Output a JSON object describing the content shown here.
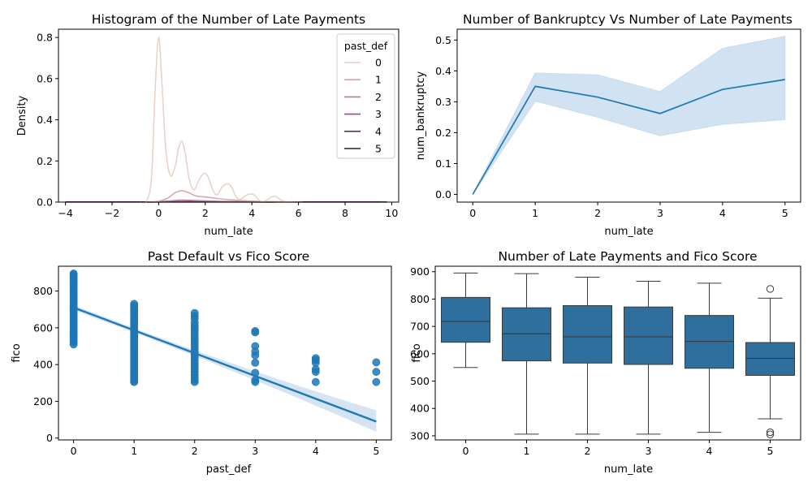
{
  "colors": {
    "line_blue": "#1f77b4",
    "band_blue": "#c6dbef",
    "box_fill": "#2f6f9e",
    "box_edge": "#3a3a3a",
    "axis": "#000000"
  },
  "chart_data": [
    {
      "type": "line",
      "subtype": "kde",
      "title": "Histogram of the Number of Late Payments",
      "xlabel": "num_late",
      "ylabel": "Density",
      "xlim": [
        -4.3,
        10.3
      ],
      "ylim": [
        0,
        0.84
      ],
      "xticks": [
        -4,
        -2,
        0,
        2,
        4,
        6,
        8,
        10
      ],
      "yticks": [
        0.0,
        0.2,
        0.4,
        0.6,
        0.8
      ],
      "xtick_labels": [
        "−4",
        "−2",
        "0",
        "2",
        "4",
        "6",
        "8",
        "10"
      ],
      "ytick_labels": [
        "0.0",
        "0.2",
        "0.4",
        "0.6",
        "0.8"
      ],
      "grid": false,
      "legend": {
        "title": "past_def",
        "placement": "top-right",
        "entries": [
          "0",
          "1",
          "2",
          "3",
          "4",
          "5"
        ]
      },
      "series": [
        {
          "name": "0",
          "color": "#ebcfc6",
          "x": [
            -0.8,
            -0.5,
            -0.3,
            -0.15,
            0,
            0.15,
            0.3,
            0.5,
            0.7,
            0.85,
            1,
            1.15,
            1.3,
            1.5,
            1.7,
            1.85,
            2,
            2.15,
            2.3,
            2.5,
            2.7,
            2.85,
            3,
            3.15,
            3.3,
            3.5,
            3.7,
            3.85,
            4,
            4.15,
            4.3,
            4.5,
            4.7,
            4.85,
            5,
            5.15,
            5.3,
            5.5,
            5.8,
            6.2
          ],
          "y": [
            0,
            0.01,
            0.13,
            0.55,
            0.8,
            0.56,
            0.26,
            0.13,
            0.17,
            0.26,
            0.295,
            0.23,
            0.12,
            0.06,
            0.1,
            0.13,
            0.14,
            0.115,
            0.065,
            0.035,
            0.07,
            0.085,
            0.088,
            0.07,
            0.03,
            0.013,
            0.03,
            0.038,
            0.04,
            0.03,
            0.01,
            0.003,
            0.015,
            0.025,
            0.028,
            0.018,
            0.006,
            0.002,
            0,
            0
          ]
        },
        {
          "name": "1",
          "color": "#d9a3ab",
          "x": [
            -0.5,
            0,
            0.4,
            0.7,
            1,
            1.3,
            1.6,
            2,
            2.5,
            3,
            3.5,
            4,
            4.5,
            5,
            6
          ],
          "y": [
            0,
            0.004,
            0.02,
            0.045,
            0.055,
            0.045,
            0.03,
            0.025,
            0.018,
            0.012,
            0.008,
            0.005,
            0.003,
            0.002,
            0
          ]
        },
        {
          "name": "2",
          "color": "#b97a91",
          "x": [
            -0.5,
            0,
            0.5,
            1,
            1.5,
            2,
            2.5,
            3,
            4,
            5
          ],
          "y": [
            0,
            0.002,
            0.006,
            0.01,
            0.008,
            0.006,
            0.004,
            0.003,
            0.001,
            0
          ]
        },
        {
          "name": "3",
          "color": "#8e4e86",
          "x": [
            -0.5,
            0,
            1,
            2,
            3,
            4,
            5
          ],
          "y": [
            0,
            0.001,
            0.003,
            0.003,
            0.002,
            0.001,
            0
          ]
        },
        {
          "name": "4",
          "color": "#5e2c63",
          "x": [
            -4,
            -2,
            0,
            2,
            4,
            6,
            8,
            9.5
          ],
          "y": [
            0.001,
            0.001,
            0.001,
            0.001,
            0.001,
            0.001,
            0.001,
            0.001
          ]
        },
        {
          "name": "5",
          "color": "#2b1a36",
          "x": [
            -4,
            -1,
            1,
            3,
            5,
            7,
            9.8
          ],
          "y": [
            0.0005,
            0.0005,
            0.0005,
            0.0005,
            0.0005,
            0.0005,
            0.0005
          ]
        }
      ]
    },
    {
      "type": "line",
      "title": "Number of Bankruptcy Vs Number of Late Payments",
      "xlabel": "num_late",
      "ylabel": "num_bankruptcy",
      "xlim": [
        -0.25,
        5.25
      ],
      "ylim": [
        -0.025,
        0.535
      ],
      "xticks": [
        0,
        1,
        2,
        3,
        4,
        5
      ],
      "yticks": [
        0.0,
        0.1,
        0.2,
        0.3,
        0.4,
        0.5
      ],
      "xtick_labels": [
        "0",
        "1",
        "2",
        "3",
        "4",
        "5"
      ],
      "ytick_labels": [
        "0.0",
        "0.1",
        "0.2",
        "0.3",
        "0.4",
        "0.5"
      ],
      "grid": false,
      "x": [
        0,
        1,
        2,
        3,
        4,
        5
      ],
      "y": [
        0.0,
        0.35,
        0.315,
        0.262,
        0.34,
        0.372
      ],
      "ci_upper": [
        0.0,
        0.393,
        0.387,
        0.333,
        0.473,
        0.512
      ],
      "ci_lower": [
        0.0,
        0.302,
        0.25,
        0.19,
        0.227,
        0.242
      ]
    },
    {
      "type": "scatter",
      "title": "Past Default vs Fico Score",
      "xlabel": "past_def",
      "ylabel": "fico",
      "xlim": [
        -0.25,
        5.25
      ],
      "ylim": [
        -10,
        935
      ],
      "xticks": [
        0,
        1,
        2,
        3,
        4,
        5
      ],
      "yticks": [
        0,
        200,
        400,
        600,
        800
      ],
      "xtick_labels": [
        "0",
        "1",
        "2",
        "3",
        "4",
        "5"
      ],
      "ytick_labels": [
        "0",
        "200",
        "400",
        "600",
        "800"
      ],
      "grid": false,
      "regression": {
        "x": [
          0,
          5
        ],
        "y": [
          710,
          90
        ],
        "ci_upper_at_5": 145,
        "ci_lower_at_5": 40,
        "ci_upper_at_0": 722,
        "ci_lower_at_0": 698
      },
      "points": [
        {
          "x": 0,
          "y": [
            510,
            520,
            530,
            540,
            550,
            560,
            570,
            580,
            590,
            600,
            610,
            620,
            630,
            640,
            650,
            660,
            670,
            680,
            690,
            700,
            710,
            720,
            730,
            740,
            750,
            760,
            770,
            780,
            790,
            800,
            810,
            820,
            830,
            840,
            850,
            860,
            870,
            880,
            890,
            895
          ]
        },
        {
          "x": 1,
          "y": [
            305,
            310,
            320,
            330,
            340,
            350,
            360,
            370,
            380,
            390,
            400,
            410,
            420,
            430,
            440,
            450,
            460,
            470,
            480,
            490,
            500,
            510,
            520,
            530,
            540,
            550,
            560,
            570,
            580,
            590,
            600,
            610,
            620,
            630,
            640,
            650,
            660,
            670,
            680,
            690,
            700,
            710,
            720,
            730
          ]
        },
        {
          "x": 2,
          "y": [
            305,
            315,
            330,
            345,
            360,
            375,
            390,
            405,
            420,
            435,
            450,
            465,
            480,
            495,
            510,
            525,
            540,
            555,
            570,
            585,
            600,
            615,
            630,
            650,
            665,
            680
          ]
        },
        {
          "x": 3,
          "y": [
            305,
            315,
            355,
            410,
            450,
            470,
            500,
            575,
            582
          ]
        },
        {
          "x": 4,
          "y": [
            305,
            360,
            375,
            410,
            425,
            435
          ]
        },
        {
          "x": 5,
          "y": [
            305,
            360,
            412
          ]
        }
      ]
    },
    {
      "type": "box",
      "title": "Number of Late Payments and Fico Score",
      "xlabel": "num_late",
      "ylabel": "fico",
      "ylim": [
        285,
        920
      ],
      "categories": [
        "0",
        "1",
        "2",
        "3",
        "4",
        "5"
      ],
      "yticks": [
        300,
        400,
        500,
        600,
        700,
        800,
        900
      ],
      "ytick_labels": [
        "300",
        "400",
        "500",
        "600",
        "700",
        "800",
        "900"
      ],
      "grid": false,
      "boxes": [
        {
          "whisker_low": 550,
          "q1": 642,
          "median": 718,
          "q3": 806,
          "whisker_high": 895,
          "outliers": []
        },
        {
          "whisker_low": 306,
          "q1": 574,
          "median": 673,
          "q3": 768,
          "whisker_high": 893,
          "outliers": []
        },
        {
          "whisker_low": 306,
          "q1": 566,
          "median": 662,
          "q3": 776,
          "whisker_high": 880,
          "outliers": []
        },
        {
          "whisker_low": 306,
          "q1": 561,
          "median": 662,
          "q3": 771,
          "whisker_high": 865,
          "outliers": []
        },
        {
          "whisker_low": 313,
          "q1": 547,
          "median": 645,
          "q3": 740,
          "whisker_high": 858,
          "outliers": []
        },
        {
          "whisker_low": 362,
          "q1": 521,
          "median": 583,
          "q3": 641,
          "whisker_high": 803,
          "outliers": [
            837,
            313,
            305
          ]
        }
      ]
    }
  ]
}
